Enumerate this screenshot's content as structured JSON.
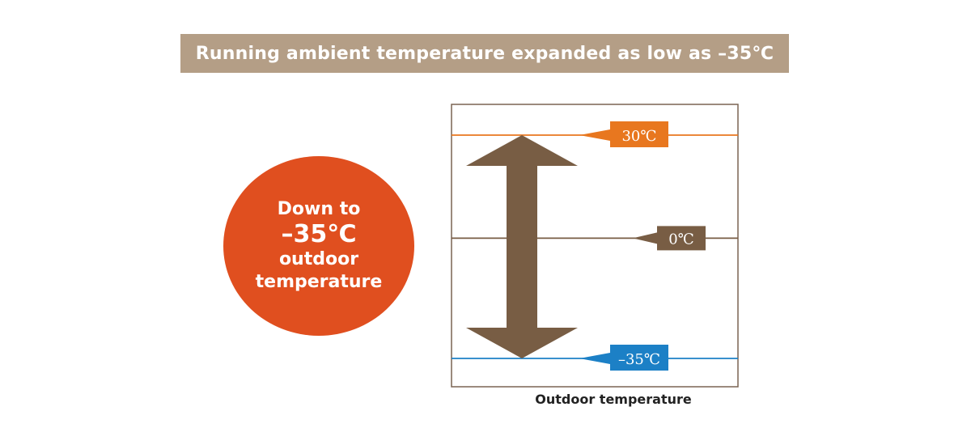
{
  "banner": {
    "text": "Running ambient temperature expanded as low as –35℃",
    "bg_color": "#b49e86"
  },
  "circle": {
    "line1": "Down to",
    "line2": "–35℃",
    "line3": "outdoor",
    "line4": "temperature",
    "color": "#e04f1f"
  },
  "diagram": {
    "arrow_color": "#785d44",
    "frame_color": "#7a6452",
    "levels": [
      {
        "value": 30,
        "label": "30℃",
        "color": "#e8771f"
      },
      {
        "value": 0,
        "label": "0℃",
        "color": "#785d44"
      },
      {
        "value": -35,
        "label": "–35℃",
        "color": "#1c80c6"
      }
    ],
    "arrow_range": [
      -35,
      30
    ]
  },
  "caption": "Outdoor temperature"
}
